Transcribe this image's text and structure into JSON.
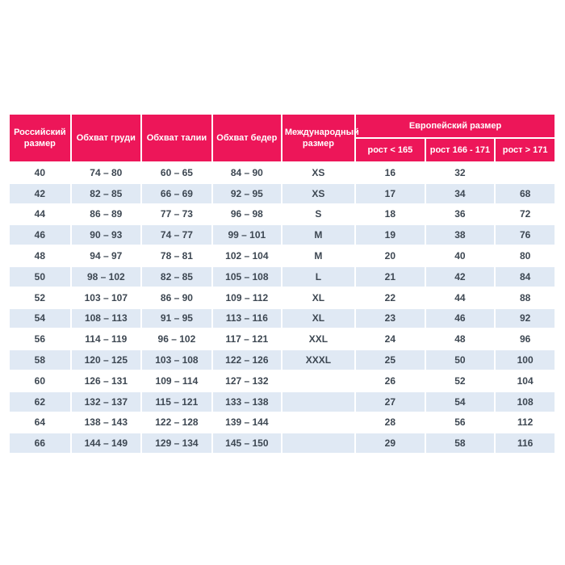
{
  "chart_data": {
    "type": "table",
    "title": "",
    "header": {
      "russian_size": "Российский размер",
      "chest": "Обхват груди",
      "waist": "Обхват талии",
      "hips": "Обхват бедер",
      "international_size": "Международный размер",
      "european_size_group": "Европейский размер",
      "height_under_165": "рост < 165",
      "height_166_171": "рост 166 - 171",
      "height_over_171": "рост > 171"
    },
    "rows": [
      [
        "40",
        "74 – 80",
        "60 – 65",
        "84 – 90",
        "XS",
        "16",
        "32",
        ""
      ],
      [
        "42",
        "82 – 85",
        "66 – 69",
        "92 – 95",
        "XS",
        "17",
        "34",
        "68"
      ],
      [
        "44",
        "86 – 89",
        "77 – 73",
        "96 – 98",
        "S",
        "18",
        "36",
        "72"
      ],
      [
        "46",
        "90 – 93",
        "74 – 77",
        "99 – 101",
        "M",
        "19",
        "38",
        "76"
      ],
      [
        "48",
        "94 – 97",
        "78 – 81",
        "102 – 104",
        "M",
        "20",
        "40",
        "80"
      ],
      [
        "50",
        "98 – 102",
        "82 – 85",
        "105 – 108",
        "L",
        "21",
        "42",
        "84"
      ],
      [
        "52",
        "103 – 107",
        "86 – 90",
        "109 – 112",
        "XL",
        "22",
        "44",
        "88"
      ],
      [
        "54",
        "108 – 113",
        "91 – 95",
        "113 – 116",
        "XL",
        "23",
        "46",
        "92"
      ],
      [
        "56",
        "114 – 119",
        "96 – 102",
        "117 – 121",
        "XXL",
        "24",
        "48",
        "96"
      ],
      [
        "58",
        "120 – 125",
        "103 – 108",
        "122 – 126",
        "XXXL",
        "25",
        "50",
        "100"
      ],
      [
        "60",
        "126 – 131",
        "109 – 114",
        "127 – 132",
        "",
        "26",
        "52",
        "104"
      ],
      [
        "62",
        "132 – 137",
        "115 – 121",
        "133 – 138",
        "",
        "27",
        "54",
        "108"
      ],
      [
        "64",
        "138 – 143",
        "122 – 128",
        "139 – 144",
        "",
        "28",
        "56",
        "112"
      ],
      [
        "66",
        "144 – 149",
        "129 – 134",
        "145 – 150",
        "",
        "29",
        "58",
        "116"
      ]
    ]
  },
  "colors": {
    "header_bg": "#ED1659",
    "header_text": "#FFFFFF",
    "stripe_bg": "#E0E9F4",
    "row_bg": "#FFFFFF",
    "cell_text": "#3D4752",
    "page_bg": "#FFFFFF"
  }
}
